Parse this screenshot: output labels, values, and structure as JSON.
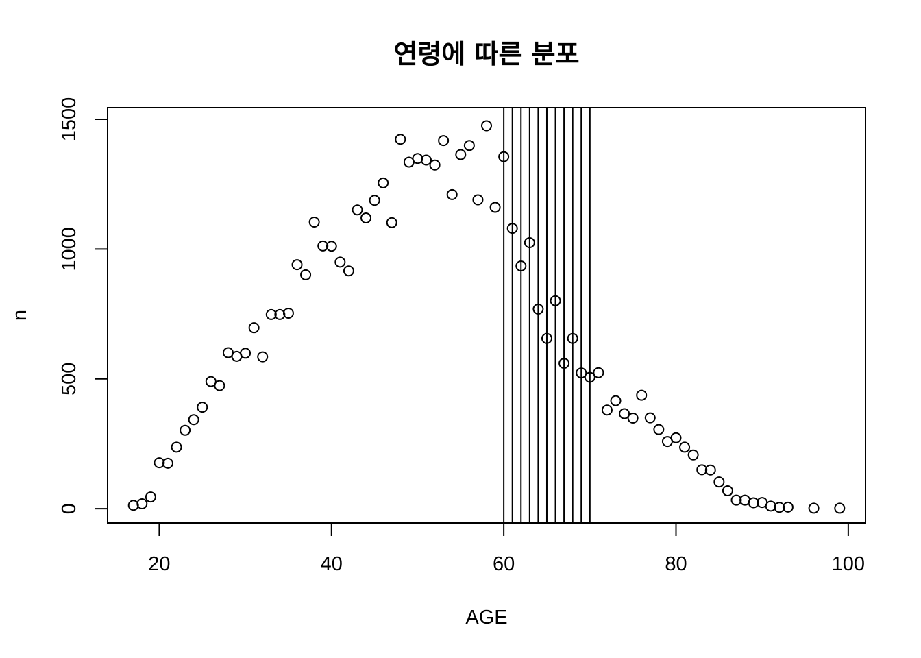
{
  "chart_data": {
    "type": "scatter",
    "title": "연령에 따른 분포",
    "xlabel": "AGE",
    "ylabel": "n",
    "xlim": [
      14,
      102
    ],
    "ylim": [
      -55,
      1545
    ],
    "xticks": [
      20,
      40,
      60,
      80,
      100
    ],
    "yticks": [
      0,
      500,
      1000,
      1500
    ],
    "xtick_labels": [
      "20",
      "40",
      "60",
      "80",
      "100"
    ],
    "ytick_labels": [
      "0",
      "500",
      "1000",
      "1500"
    ],
    "vertical_lines": [
      60,
      61,
      62,
      63,
      64,
      65,
      66,
      67,
      68,
      69,
      70
    ],
    "grid": false,
    "marker": "open-circle",
    "x": [
      17,
      18,
      19,
      20,
      21,
      22,
      23,
      24,
      25,
      26,
      27,
      28,
      29,
      30,
      31,
      32,
      33,
      34,
      35,
      36,
      37,
      38,
      39,
      40,
      41,
      42,
      43,
      44,
      45,
      46,
      47,
      48,
      49,
      50,
      51,
      52,
      53,
      54,
      55,
      56,
      57,
      58,
      59,
      60,
      61,
      62,
      63,
      64,
      65,
      66,
      67,
      68,
      69,
      70,
      71,
      72,
      73,
      74,
      75,
      76,
      77,
      78,
      79,
      80,
      81,
      82,
      83,
      84,
      85,
      86,
      87,
      88,
      89,
      90,
      91,
      92,
      93,
      96,
      99
    ],
    "y": [
      13,
      19,
      45,
      177,
      175,
      237,
      302,
      343,
      391,
      490,
      474,
      601,
      587,
      599,
      697,
      585,
      748,
      748,
      753,
      940,
      901,
      1104,
      1012,
      1011,
      950,
      916,
      1151,
      1120,
      1188,
      1255,
      1102,
      1423,
      1335,
      1349,
      1343,
      1324,
      1418,
      1210,
      1364,
      1399,
      1190,
      1475,
      1161,
      1356,
      1080,
      935,
      1025,
      769,
      656,
      801,
      560,
      656,
      523,
      506,
      524,
      380,
      416,
      366,
      349,
      437,
      350,
      305,
      259,
      273,
      237,
      207,
      150,
      149,
      103,
      69,
      33,
      33,
      23,
      24,
      10,
      5,
      6,
      2,
      2
    ]
  }
}
